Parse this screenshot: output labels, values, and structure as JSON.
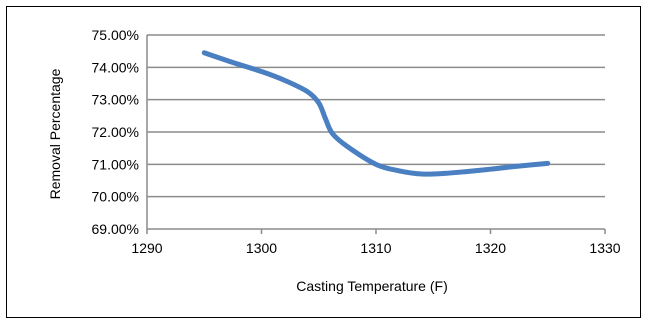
{
  "chart_data": {
    "type": "line",
    "title": "",
    "xlabel": "Casting Temperature   (F)",
    "ylabel": "Removal Percentage",
    "xlim": [
      1290,
      1330
    ],
    "ylim": [
      69.0,
      75.0
    ],
    "x_ticks": [
      "1290",
      "1300",
      "1310",
      "1320",
      "1330"
    ],
    "x_tick_values": [
      1290,
      1300,
      1310,
      1320,
      1330
    ],
    "y_ticks": [
      "69.00%",
      "70.00%",
      "71.00%",
      "72.00%",
      "73.00%",
      "74.00%",
      "75.00%"
    ],
    "y_tick_values": [
      69,
      70,
      71,
      72,
      73,
      74,
      75
    ],
    "grid": "horizontal",
    "legend": "none",
    "series": [
      {
        "color": "#4a7fc1",
        "smooth": true,
        "x": [
          1295,
          1297.5,
          1300,
          1302,
          1304,
          1305,
          1305.6,
          1306.2,
          1307.5,
          1310,
          1312,
          1314,
          1316,
          1318,
          1320,
          1322,
          1325
        ],
        "y": [
          74.45,
          74.15,
          73.87,
          73.6,
          73.25,
          72.9,
          72.4,
          71.95,
          71.55,
          71.0,
          70.8,
          70.7,
          70.72,
          70.78,
          70.85,
          70.93,
          71.03
        ]
      }
    ]
  }
}
